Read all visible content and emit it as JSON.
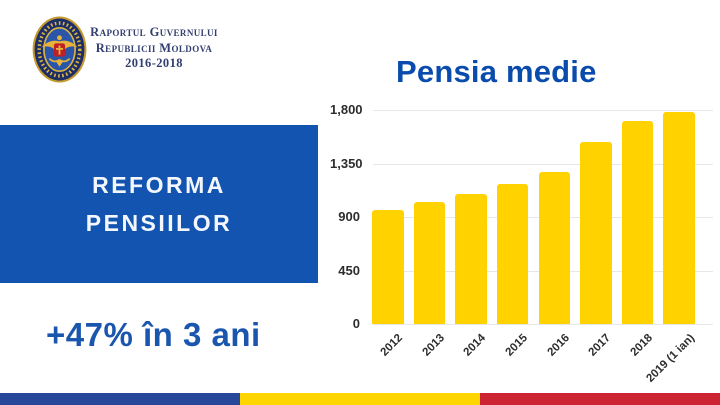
{
  "header": {
    "emblem_icon": "moldova-government-emblem-icon",
    "report_title_line1": "Raportul Guvernului",
    "report_title_line2": "Republicii Moldova",
    "report_title_line3": "2016-2018"
  },
  "left_panel": {
    "title_line1": "REFORMA",
    "title_line2": "PENSIILOR",
    "stat": "+47% în 3 ani"
  },
  "chart_data": {
    "type": "bar",
    "title": "Pensia medie",
    "categories": [
      "2012",
      "2013",
      "2014",
      "2015",
      "2016",
      "2017",
      "2018",
      "2019 (1 ian)"
    ],
    "values": [
      960,
      1025,
      1095,
      1175,
      1280,
      1530,
      1710,
      1785
    ],
    "xlabel": "",
    "ylabel": "",
    "ylim": [
      0,
      1800
    ],
    "yticks": [
      0,
      450,
      900,
      1350,
      1800
    ],
    "grid": true,
    "legend": false,
    "bar_color": "#FFD200",
    "gridline_color": "#E7E7E7",
    "tick_label_color": "#2D2D2D"
  },
  "colors": {
    "accent_blue": "#0A4CAD",
    "panel_blue": "#1254B0",
    "stat_blue": "#1B56AE",
    "flag_blue": "#27479B",
    "flag_yellow": "#FFD500",
    "flag_red": "#CC2433",
    "emblem_gold": "#D4A736",
    "emblem_navy": "#1D2D66"
  },
  "footer": {
    "stripe_segments": [
      "blue",
      "yellow",
      "red"
    ]
  }
}
